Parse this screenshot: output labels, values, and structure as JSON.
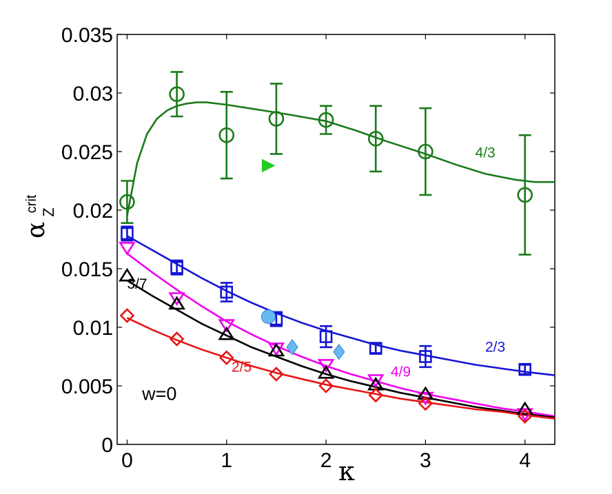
{
  "chart_data": {
    "type": "scatter",
    "title": "",
    "xlabel": "κ",
    "ylabel": "α",
    "ylabel_superscript": "crit",
    "ylabel_subscript": "Z",
    "annotation": "w=0",
    "xlim": [
      -0.1,
      4.3
    ],
    "ylim": [
      0,
      0.035
    ],
    "xticks": [
      0,
      1,
      2,
      3,
      4
    ],
    "xtick_labels": [
      "0",
      "1",
      "2",
      "3",
      "4"
    ],
    "yticks": [
      0,
      0.005,
      0.01,
      0.015,
      0.02,
      0.025,
      0.03,
      0.035
    ],
    "ytick_labels": [
      "0",
      "0.005",
      "0.01",
      "0.015",
      "0.02",
      "0.025",
      "0.03",
      "0.035"
    ],
    "series": [
      {
        "name": "4/3",
        "label": "4/3",
        "color": "#1a7a1a",
        "marker": "circle",
        "x": [
          0,
          0.5,
          1,
          1.5,
          2,
          2.5,
          3,
          4
        ],
        "y": [
          0.0207,
          0.0299,
          0.0264,
          0.0278,
          0.0277,
          0.0261,
          0.025,
          0.0213
        ],
        "err": [
          0.0018,
          0.0019,
          0.0037,
          0.003,
          0.0012,
          0.0028,
          0.0037,
          0.0051
        ],
        "fit": [
          [
            0,
            0.0195
          ],
          [
            0.1,
            0.024
          ],
          [
            0.2,
            0.0265
          ],
          [
            0.3,
            0.0278
          ],
          [
            0.4,
            0.0285
          ],
          [
            0.5,
            0.0289
          ],
          [
            0.6,
            0.0291
          ],
          [
            0.7,
            0.0292
          ],
          [
            0.8,
            0.0292
          ],
          [
            1.0,
            0.029
          ],
          [
            1.3,
            0.0286
          ],
          [
            1.6,
            0.0282
          ],
          [
            2.0,
            0.0276
          ],
          [
            2.3,
            0.0268
          ],
          [
            2.6,
            0.0259
          ],
          [
            3.0,
            0.0248
          ],
          [
            3.3,
            0.0239
          ],
          [
            3.6,
            0.0231
          ],
          [
            3.9,
            0.0226
          ],
          [
            4.1,
            0.0224
          ],
          [
            4.3,
            0.0224
          ]
        ]
      },
      {
        "name": "2/3",
        "label": "2/3",
        "color": "#1414d4",
        "marker": "square",
        "x": [
          0,
          0.5,
          1,
          1.5,
          2,
          2.5,
          3,
          4
        ],
        "y": [
          0.018,
          0.0151,
          0.013,
          0.0107,
          0.0092,
          0.0082,
          0.0075,
          0.0064
        ],
        "err": [
          0.0006,
          0.0006,
          0.0008,
          0.0006,
          0.0009,
          0.0004,
          0.0009,
          0.0004
        ],
        "fit": [
          [
            0,
            0.0178
          ],
          [
            0.25,
            0.0166
          ],
          [
            0.5,
            0.0154
          ],
          [
            0.75,
            0.0142
          ],
          [
            1.0,
            0.0131
          ],
          [
            1.25,
            0.0121
          ],
          [
            1.5,
            0.0112
          ],
          [
            1.75,
            0.0104
          ],
          [
            2.0,
            0.0097
          ],
          [
            2.25,
            0.0091
          ],
          [
            2.5,
            0.0085
          ],
          [
            2.75,
            0.008
          ],
          [
            3.0,
            0.0076
          ],
          [
            3.25,
            0.0072
          ],
          [
            3.5,
            0.0068
          ],
          [
            3.75,
            0.0065
          ],
          [
            4.0,
            0.0062
          ],
          [
            4.3,
            0.0059
          ]
        ]
      },
      {
        "name": "4/9",
        "label": "4/9",
        "color": "#ee00ee",
        "marker": "triangle-down",
        "x": [
          0,
          0.5,
          1,
          1.5,
          2,
          2.5,
          3,
          4
        ],
        "y": [
          0.0168,
          0.0125,
          0.0102,
          0.0082,
          0.0068,
          0.0055,
          0.004,
          0.0026
        ],
        "err": [
          0,
          0,
          0,
          0,
          0,
          0,
          0,
          0
        ],
        "fit": [
          [
            0,
            0.0163
          ],
          [
            0.25,
            0.0147
          ],
          [
            0.5,
            0.0132
          ],
          [
            0.75,
            0.0118
          ],
          [
            1.0,
            0.0105
          ],
          [
            1.25,
            0.0094
          ],
          [
            1.5,
            0.0084
          ],
          [
            1.75,
            0.0075
          ],
          [
            2.0,
            0.0067
          ],
          [
            2.25,
            0.006
          ],
          [
            2.5,
            0.0054
          ],
          [
            2.75,
            0.0048
          ],
          [
            3.0,
            0.0043
          ],
          [
            3.25,
            0.0039
          ],
          [
            3.5,
            0.0035
          ],
          [
            3.75,
            0.0031
          ],
          [
            4.0,
            0.0028
          ],
          [
            4.3,
            0.0024
          ]
        ]
      },
      {
        "name": "3/7",
        "label": "3/7",
        "color": "#000000",
        "marker": "triangle-up",
        "x": [
          0,
          0.5,
          1,
          1.5,
          2,
          2.5,
          3,
          4
        ],
        "y": [
          0.0144,
          0.012,
          0.0094,
          0.008,
          0.0061,
          0.0051,
          0.0043,
          0.003
        ],
        "err": [
          0,
          0,
          0,
          0,
          0,
          0,
          0,
          0
        ],
        "fit": [
          [
            0,
            0.014
          ],
          [
            0.25,
            0.0127
          ],
          [
            0.5,
            0.0115
          ],
          [
            0.75,
            0.0103
          ],
          [
            1.0,
            0.0093
          ],
          [
            1.25,
            0.0083
          ],
          [
            1.5,
            0.0075
          ],
          [
            1.75,
            0.0067
          ],
          [
            2.0,
            0.006
          ],
          [
            2.25,
            0.0054
          ],
          [
            2.5,
            0.0049
          ],
          [
            2.75,
            0.0044
          ],
          [
            3.0,
            0.004
          ],
          [
            3.25,
            0.0036
          ],
          [
            3.5,
            0.0032
          ],
          [
            3.75,
            0.0029
          ],
          [
            4.0,
            0.0026
          ],
          [
            4.3,
            0.0023
          ]
        ]
      },
      {
        "name": "2/5",
        "label": "2/5",
        "color": "#e81414",
        "marker": "diamond",
        "x": [
          0,
          0.5,
          1,
          1.5,
          2,
          2.5,
          3,
          4
        ],
        "y": [
          0.011,
          0.009,
          0.0074,
          0.006,
          0.005,
          0.0042,
          0.0035,
          0.0024
        ],
        "err": [
          0,
          0,
          0,
          0,
          0,
          0,
          0,
          0
        ],
        "fit": [
          [
            0,
            0.0108
          ],
          [
            0.25,
            0.0098
          ],
          [
            0.5,
            0.0089
          ],
          [
            0.75,
            0.0081
          ],
          [
            1.0,
            0.0074
          ],
          [
            1.25,
            0.0067
          ],
          [
            1.5,
            0.0061
          ],
          [
            1.75,
            0.0056
          ],
          [
            2.0,
            0.0051
          ],
          [
            2.25,
            0.0047
          ],
          [
            2.5,
            0.0043
          ],
          [
            2.75,
            0.0039
          ],
          [
            3.0,
            0.0036
          ],
          [
            3.25,
            0.0033
          ],
          [
            3.5,
            0.003
          ],
          [
            3.75,
            0.0028
          ],
          [
            4.0,
            0.0025
          ],
          [
            4.3,
            0.0022
          ]
        ]
      }
    ],
    "extra_points": [
      {
        "name": "green-filled-triangle",
        "marker": "triangle-right",
        "color": "#22cc22",
        "x": 1.42,
        "y": 0.0238
      },
      {
        "name": "light-blue-circle",
        "marker": "circle-filled",
        "color": "#66b8f0",
        "x": 1.42,
        "y": 0.0109
      },
      {
        "name": "light-blue-diamond-1",
        "marker": "diamond-filled",
        "color": "#66b8f0",
        "x": 1.66,
        "y": 0.0083
      },
      {
        "name": "light-blue-diamond-2",
        "marker": "diamond-filled",
        "color": "#66b8f0",
        "x": 2.13,
        "y": 0.0079
      }
    ],
    "series_label_positions": {
      "4/3": [
        3.5,
        0.0245
      ],
      "2/3": [
        3.6,
        0.0079
      ],
      "4/9": [
        2.65,
        0.0058
      ],
      "3/7": [
        0.0,
        0.0133
      ],
      "2/5": [
        1.05,
        0.0062
      ]
    },
    "annotation_position": [
      0.15,
      0.0038
    ]
  }
}
